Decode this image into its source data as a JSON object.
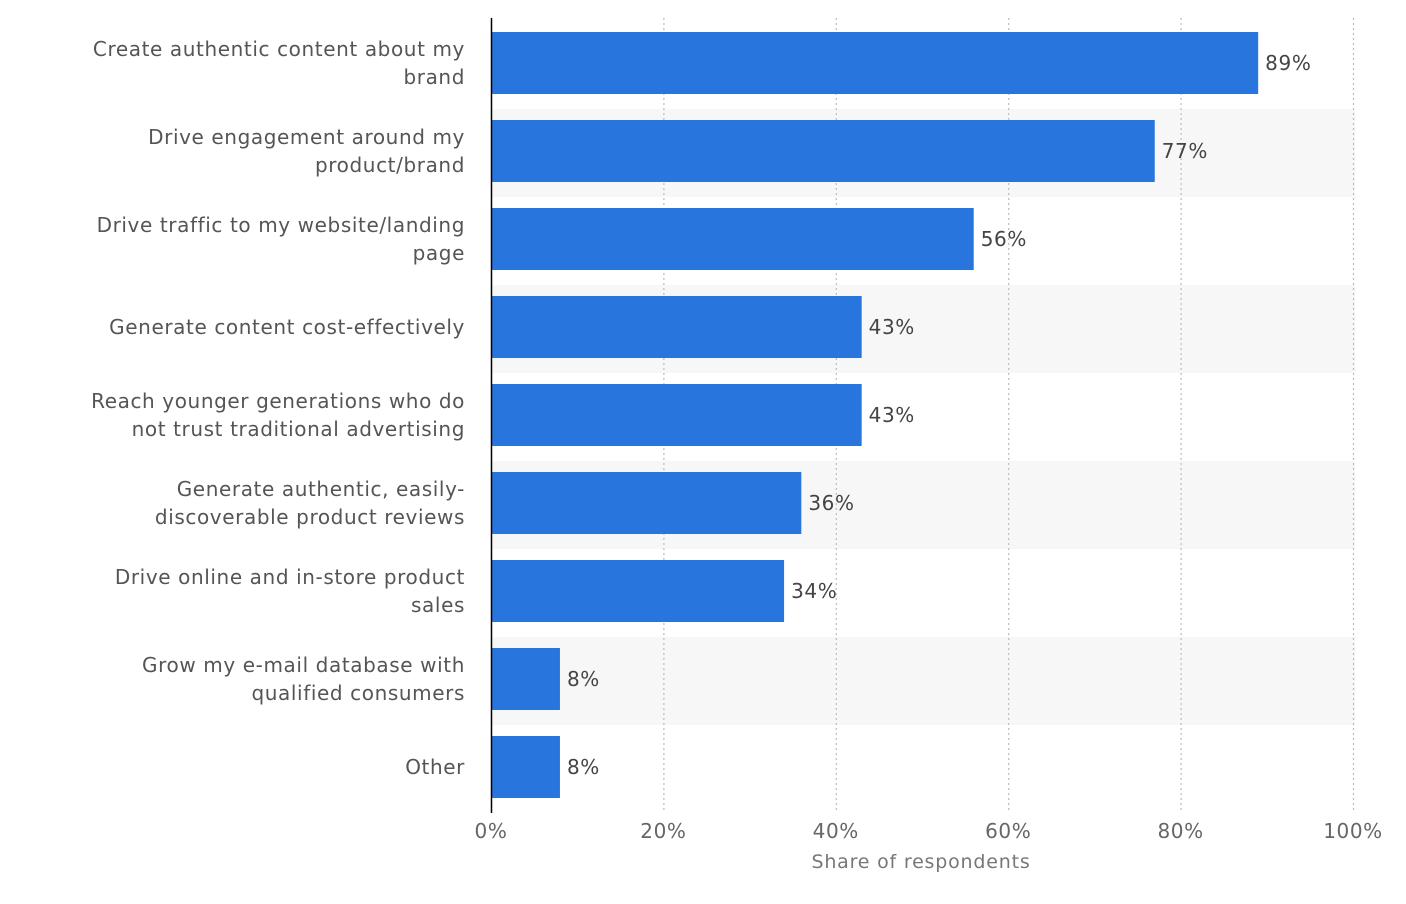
{
  "chart_data": {
    "type": "bar",
    "orientation": "horizontal",
    "categories": [
      [
        "Create authentic content about my",
        "brand"
      ],
      [
        "Drive engagement around my",
        "product/brand"
      ],
      [
        "Drive traffic to my website/landing",
        "page"
      ],
      [
        "Generate content cost-effectively"
      ],
      [
        "Reach younger generations who do",
        "not trust traditional advertising"
      ],
      [
        "Generate authentic, easily-",
        "discoverable product reviews"
      ],
      [
        "Drive online and in-store product",
        "sales"
      ],
      [
        "Grow my e-mail database with",
        "qualified consumers"
      ],
      [
        "Other"
      ]
    ],
    "values": [
      89,
      77,
      56,
      43,
      43,
      36,
      34,
      8,
      8
    ],
    "value_labels": [
      "89%",
      "77%",
      "56%",
      "43%",
      "43%",
      "36%",
      "34%",
      "8%",
      "8%"
    ],
    "xlabel": "Share of respondents",
    "ylabel": "",
    "xlim": [
      0,
      100
    ],
    "x_ticks": [
      0,
      20,
      40,
      60,
      80,
      100
    ],
    "x_tick_labels": [
      "0%",
      "20%",
      "40%",
      "60%",
      "80%",
      "100%"
    ],
    "grid": "vertical dotted",
    "legend": "none",
    "colors": {
      "bar": "#2876dd",
      "band": "#f7f7f7",
      "grid": "#bbbbbb",
      "axis": "#000000"
    }
  }
}
